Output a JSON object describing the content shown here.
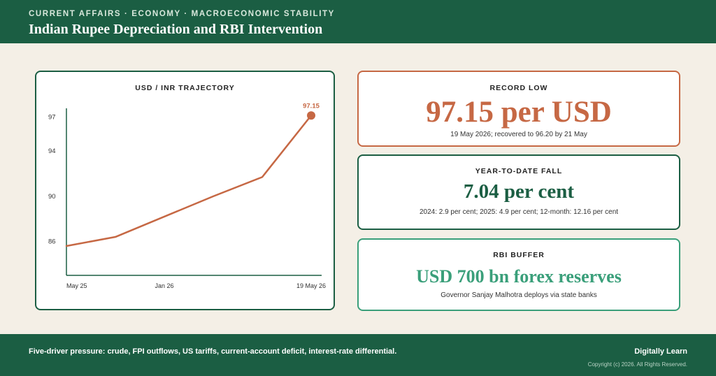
{
  "header": {
    "kicker": "CURRENT AFFAIRS · ECONOMY · MACROECONOMIC STABILITY",
    "title": "Indian Rupee Depreciation and RBI Intervention"
  },
  "chart_data": {
    "type": "line",
    "title": "USD / INR TRAJECTORY",
    "x": [
      "May 25",
      "",
      "Jan 26",
      "",
      "",
      "19 May 26"
    ],
    "x_tick_labels": [
      "May 25",
      "Jan 26",
      "19 May 26"
    ],
    "values": [
      85.6,
      86.4,
      88.2,
      90.0,
      91.7,
      97.15
    ],
    "y_ticks": [
      86,
      90,
      94,
      97
    ],
    "ylim": [
      83,
      97.6
    ],
    "end_label": "97.15",
    "series_color": "#c66844",
    "grid": false
  },
  "cards": {
    "record_low": {
      "label": "RECORD LOW",
      "value": "97.15 per USD",
      "sub": "19 May 2026; recovered to 96.20 by 21 May"
    },
    "ytd_fall": {
      "label": "YEAR-TO-DATE FALL",
      "value": "7.04 per cent",
      "sub": "2024: 2.9 per cent; 2025: 4.9 per cent; 12-month: 12.16 per cent"
    },
    "rbi_buffer": {
      "label": "RBI BUFFER",
      "value": "USD 700 bn forex reserves",
      "sub": "Governor Sanjay Malhotra deploys via state banks"
    }
  },
  "footer": {
    "note": "Five-driver pressure: crude, FPI outflows, US tariffs, current-account deficit, interest-rate differential.",
    "brand": "Digitally Learn",
    "copyright": "Copyright (c) 2026. All Rights Reserved."
  },
  "colors": {
    "header_bg": "#1b5e43",
    "accent_orange": "#c66844",
    "accent_teal": "#3a9f7a",
    "page_bg": "#f4efe6"
  }
}
